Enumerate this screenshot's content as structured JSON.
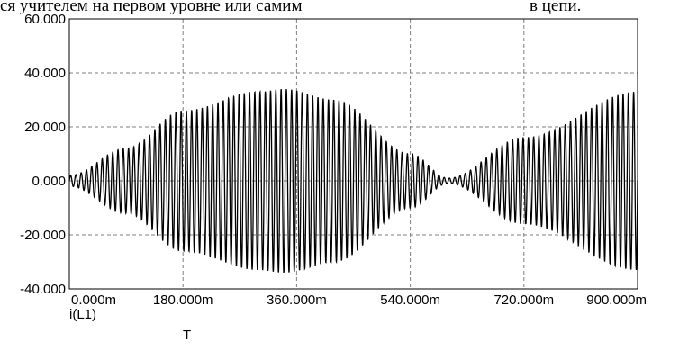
{
  "header": {
    "text_left": "ся учителем на первом уровне или самим",
    "text_right": "в цепи."
  },
  "chart_data": {
    "type": "line",
    "title": "",
    "xlabel": "T",
    "ylabel": "i(L1)",
    "xlim": [
      0,
      900
    ],
    "ylim": [
      -40,
      60
    ],
    "x_ticks": [
      "0.000m",
      "180.000m",
      "360.000m",
      "540.000m",
      "720.000m",
      "900.000m"
    ],
    "y_ticks": [
      "60.000",
      "40.000",
      "20.000",
      "0.000",
      "-20.000",
      "-40.000"
    ],
    "grid": true,
    "series": [
      {
        "values_description_envelope_points": [
          {
            "x": 0,
            "amplitude": 2
          },
          {
            "x": 90,
            "amplitude": 12
          },
          {
            "x": 180,
            "amplitude": 26
          },
          {
            "x": 300,
            "amplitude": 33
          },
          {
            "x": 340,
            "amplitude": 34
          },
          {
            "x": 420,
            "amplitude": 30
          },
          {
            "x": 540,
            "amplitude": 10
          },
          {
            "x": 600,
            "amplitude": 1
          },
          {
            "x": 720,
            "amplitude": 16
          },
          {
            "x": 900,
            "amplitude": 33
          }
        ],
        "color": "#000000"
      }
    ],
    "oscillations_in_range": 108
  }
}
